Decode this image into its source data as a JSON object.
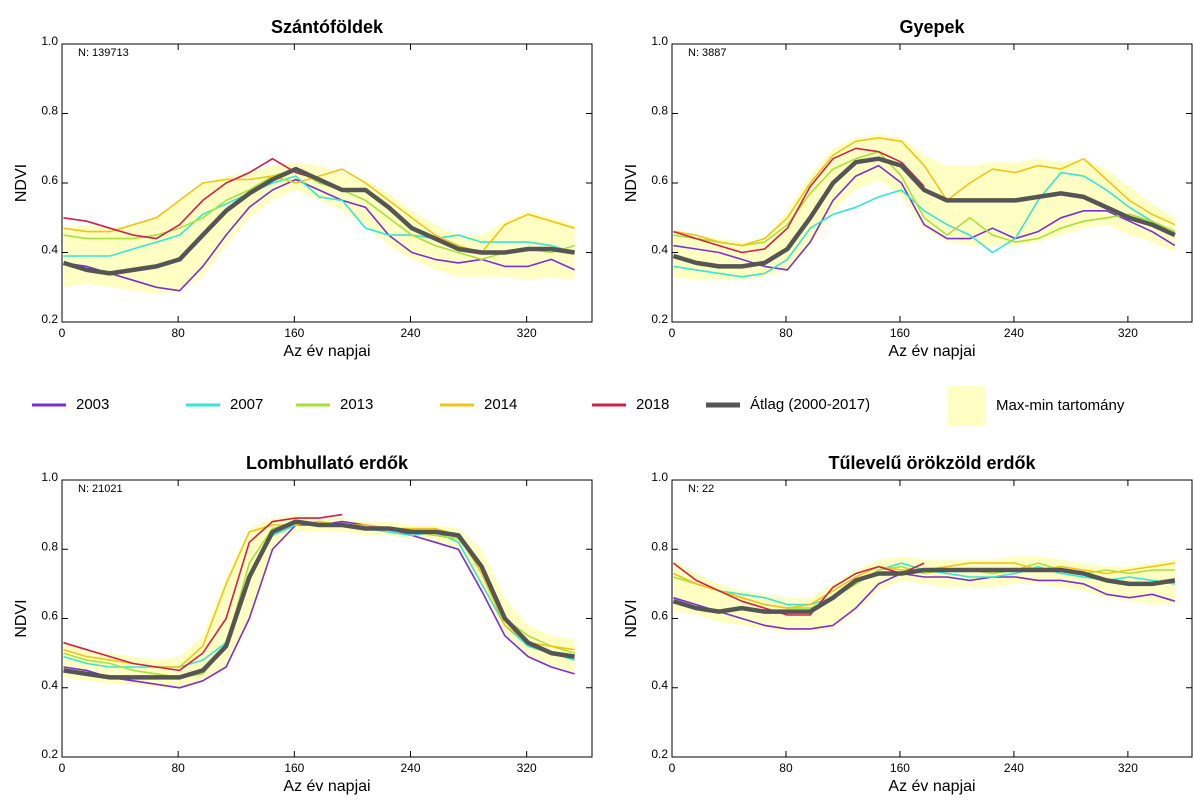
{
  "x_label_note": null,
  "legend": {
    "entries": [
      {
        "name": "2003",
        "color": "#7b2fd6"
      },
      {
        "name": "2007",
        "color": "#33e6d6"
      },
      {
        "name": "2013",
        "color": "#a6e23a"
      },
      {
        "name": "2014",
        "color": "#f0c419"
      },
      {
        "name": "2018",
        "color": "#d0204a"
      },
      {
        "name": "Átlag (2000-2017)",
        "color": "#555555"
      },
      {
        "name": "Max-min tartomány",
        "color": "#ffffc4"
      }
    ]
  },
  "chart_data": [
    {
      "type": "line",
      "title": "Szántóföldek",
      "annotation": "N: 139713",
      "x_label": "Az év napjai",
      "y_label": "NDVI",
      "x": [
        1,
        17,
        33,
        49,
        65,
        81,
        97,
        113,
        129,
        145,
        161,
        177,
        193,
        209,
        225,
        241,
        257,
        273,
        289,
        305,
        321,
        337,
        353
      ],
      "xlim": [
        0,
        365
      ],
      "xticks": [
        0,
        80,
        160,
        240,
        320
      ],
      "ylim": [
        0.2,
        1
      ],
      "yticks": [
        0.2,
        0.4,
        0.6,
        0.8,
        {
          "value": 1,
          "label": "1.0"
        }
      ],
      "band": {
        "upper": [
          0.47,
          0.48,
          0.47,
          0.48,
          0.5,
          0.55,
          0.6,
          0.62,
          0.63,
          0.65,
          0.66,
          0.65,
          0.63,
          0.61,
          0.57,
          0.52,
          0.48,
          0.45,
          0.45,
          0.49,
          0.52,
          0.5,
          0.48
        ],
        "lower": [
          0.3,
          0.31,
          0.3,
          0.29,
          0.28,
          0.29,
          0.33,
          0.42,
          0.5,
          0.55,
          0.58,
          0.55,
          0.52,
          0.48,
          0.42,
          0.38,
          0.35,
          0.33,
          0.33,
          0.33,
          0.32,
          0.33,
          0.32
        ]
      },
      "series": [
        {
          "values": [
            0.37,
            0.36,
            0.34,
            0.32,
            0.3,
            0.29,
            0.36,
            0.45,
            0.53,
            0.58,
            0.61,
            0.58,
            0.55,
            0.53,
            0.45,
            0.4,
            0.38,
            0.37,
            0.38,
            0.36,
            0.36,
            0.38,
            0.35
          ]
        },
        {
          "values": [
            0.39,
            0.39,
            0.39,
            0.41,
            0.43,
            0.45,
            0.51,
            0.54,
            0.57,
            0.6,
            0.62,
            0.56,
            0.55,
            0.47,
            0.45,
            0.45,
            0.44,
            0.45,
            0.43,
            0.43,
            0.43,
            0.42,
            0.4
          ]
        },
        {
          "values": [
            0.45,
            0.44,
            0.44,
            0.44,
            0.45,
            0.47,
            0.5,
            0.55,
            0.58,
            0.62,
            0.64,
            0.6,
            0.58,
            0.55,
            0.5,
            0.45,
            0.42,
            0.4,
            0.38,
            0.4,
            0.41,
            0.4,
            0.42
          ]
        },
        {
          "values": [
            0.47,
            0.46,
            0.46,
            0.48,
            0.5,
            0.55,
            0.6,
            0.61,
            0.61,
            0.62,
            0.6,
            0.62,
            0.64,
            0.6,
            0.55,
            0.5,
            0.45,
            0.42,
            0.4,
            0.48,
            0.51,
            0.49,
            0.47
          ]
        },
        {
          "values": [
            0.5,
            0.49,
            0.47,
            0.45,
            0.44,
            0.48,
            0.55,
            0.6,
            0.63,
            0.67,
            0.63,
            0.61,
            null,
            null,
            null,
            null,
            null,
            null,
            null,
            null,
            null,
            null,
            null
          ]
        },
        {
          "values": [
            0.37,
            0.35,
            0.34,
            0.35,
            0.36,
            0.38,
            0.45,
            0.52,
            0.57,
            0.61,
            0.64,
            0.61,
            0.58,
            0.58,
            0.53,
            0.47,
            0.44,
            0.41,
            0.4,
            0.4,
            0.41,
            0.41,
            0.4
          ]
        }
      ]
    },
    {
      "type": "line",
      "title": "Gyepek",
      "annotation": "N: 3887",
      "x_label": "Az év napjai",
      "y_label": "NDVI",
      "x": [
        1,
        17,
        33,
        49,
        65,
        81,
        97,
        113,
        129,
        145,
        161,
        177,
        193,
        209,
        225,
        241,
        257,
        273,
        289,
        305,
        321,
        337,
        353
      ],
      "xlim": [
        0,
        365
      ],
      "xticks": [
        0,
        80,
        160,
        240,
        320
      ],
      "ylim": [
        0.2,
        1
      ],
      "yticks": [
        0.2,
        0.4,
        0.6,
        0.8,
        {
          "value": 1,
          "label": "1.0"
        }
      ],
      "band": {
        "upper": [
          0.46,
          0.45,
          0.44,
          0.43,
          0.44,
          0.52,
          0.62,
          0.7,
          0.73,
          0.74,
          0.73,
          0.68,
          0.65,
          0.65,
          0.66,
          0.66,
          0.67,
          0.66,
          0.67,
          0.64,
          0.59,
          0.54,
          0.5
        ],
        "lower": [
          0.33,
          0.32,
          0.32,
          0.32,
          0.33,
          0.35,
          0.42,
          0.52,
          0.58,
          0.61,
          0.56,
          0.47,
          0.43,
          0.42,
          0.42,
          0.42,
          0.43,
          0.45,
          0.47,
          0.48,
          0.45,
          0.43,
          0.4
        ]
      },
      "series": [
        {
          "values": [
            0.42,
            0.41,
            0.4,
            0.38,
            0.36,
            0.35,
            0.43,
            0.55,
            0.62,
            0.65,
            0.6,
            0.48,
            0.44,
            0.44,
            0.47,
            0.44,
            0.46,
            0.5,
            0.52,
            0.52,
            0.49,
            0.46,
            0.42
          ]
        },
        {
          "values": [
            0.36,
            0.35,
            0.34,
            0.33,
            0.34,
            0.38,
            0.47,
            0.51,
            0.53,
            0.56,
            0.58,
            0.52,
            0.48,
            0.45,
            0.4,
            0.44,
            0.55,
            0.63,
            0.62,
            0.58,
            0.53,
            0.49,
            0.45
          ]
        },
        {
          "values": [
            0.45,
            0.44,
            0.43,
            0.42,
            0.43,
            0.48,
            0.57,
            0.64,
            0.67,
            0.69,
            0.62,
            0.5,
            0.45,
            0.5,
            0.45,
            0.43,
            0.44,
            0.47,
            0.49,
            0.5,
            0.51,
            0.49,
            0.46
          ]
        },
        {
          "values": [
            0.46,
            0.45,
            0.43,
            0.42,
            0.44,
            0.5,
            0.6,
            0.68,
            0.72,
            0.73,
            0.72,
            0.65,
            0.55,
            0.6,
            0.64,
            0.63,
            0.65,
            0.64,
            0.67,
            0.61,
            0.55,
            0.51,
            0.48
          ]
        },
        {
          "values": [
            0.46,
            0.44,
            0.42,
            0.4,
            0.41,
            0.47,
            0.59,
            0.67,
            0.7,
            0.69,
            0.66,
            0.59,
            null,
            null,
            null,
            null,
            null,
            null,
            null,
            null,
            null,
            null,
            null
          ]
        },
        {
          "values": [
            0.39,
            0.37,
            0.36,
            0.36,
            0.37,
            0.41,
            0.5,
            0.6,
            0.66,
            0.67,
            0.65,
            0.58,
            0.55,
            0.55,
            0.55,
            0.55,
            0.56,
            0.57,
            0.56,
            0.53,
            0.5,
            0.48,
            0.45
          ]
        }
      ]
    },
    {
      "type": "line",
      "title": "Lombhullató erdők",
      "annotation": "N: 21021",
      "x_label": "Az év napjai",
      "y_label": "NDVI",
      "x": [
        1,
        17,
        33,
        49,
        65,
        81,
        97,
        113,
        129,
        145,
        161,
        177,
        193,
        209,
        225,
        241,
        257,
        273,
        289,
        305,
        321,
        337,
        353
      ],
      "xlim": [
        0,
        365
      ],
      "xticks": [
        0,
        80,
        160,
        240,
        320
      ],
      "ylim": [
        0.2,
        1
      ],
      "yticks": [
        0.2,
        0.4,
        0.6,
        0.8,
        {
          "value": 1,
          "label": "1.0"
        }
      ],
      "band": {
        "upper": [
          0.53,
          0.51,
          0.5,
          0.49,
          0.48,
          0.49,
          0.55,
          0.72,
          0.86,
          0.89,
          0.9,
          0.89,
          0.89,
          0.88,
          0.88,
          0.87,
          0.87,
          0.86,
          0.8,
          0.66,
          0.58,
          0.55,
          0.54
        ],
        "lower": [
          0.43,
          0.42,
          0.41,
          0.41,
          0.4,
          0.4,
          0.42,
          0.46,
          0.6,
          0.8,
          0.85,
          0.85,
          0.85,
          0.84,
          0.84,
          0.83,
          0.82,
          0.8,
          0.68,
          0.55,
          0.49,
          0.46,
          0.44
        ]
      },
      "series": [
        {
          "values": [
            0.46,
            0.45,
            0.43,
            0.42,
            0.41,
            0.4,
            0.42,
            0.46,
            0.6,
            0.8,
            0.87,
            0.87,
            0.88,
            0.87,
            0.86,
            0.84,
            0.82,
            0.8,
            0.68,
            0.55,
            0.49,
            0.46,
            0.44
          ]
        },
        {
          "values": [
            0.49,
            0.47,
            0.46,
            0.46,
            0.46,
            0.46,
            0.48,
            0.53,
            0.72,
            0.84,
            0.87,
            0.88,
            0.87,
            0.86,
            0.85,
            0.84,
            0.85,
            0.82,
            0.7,
            0.58,
            0.52,
            0.5,
            0.48
          ]
        },
        {
          "values": [
            0.5,
            0.48,
            0.47,
            0.45,
            0.44,
            0.43,
            0.44,
            0.52,
            0.76,
            0.86,
            0.88,
            0.87,
            0.87,
            0.86,
            0.86,
            0.85,
            0.84,
            0.83,
            0.75,
            0.6,
            0.55,
            0.52,
            0.5
          ]
        },
        {
          "values": [
            0.51,
            0.49,
            0.48,
            0.47,
            0.46,
            0.46,
            0.52,
            0.7,
            0.85,
            0.87,
            0.87,
            0.88,
            0.87,
            0.87,
            0.86,
            0.86,
            0.86,
            0.84,
            0.73,
            0.58,
            0.53,
            0.52,
            0.51
          ]
        },
        {
          "values": [
            0.53,
            0.51,
            0.49,
            0.47,
            0.46,
            0.45,
            0.5,
            0.6,
            0.82,
            0.88,
            0.89,
            0.89,
            0.9,
            null,
            null,
            null,
            null,
            null,
            null,
            null,
            null,
            null,
            null
          ]
        },
        {
          "values": [
            0.45,
            0.44,
            0.43,
            0.43,
            0.43,
            0.43,
            0.45,
            0.52,
            0.72,
            0.85,
            0.88,
            0.87,
            0.87,
            0.86,
            0.86,
            0.85,
            0.85,
            0.84,
            0.75,
            0.6,
            0.53,
            0.5,
            0.49
          ]
        }
      ]
    },
    {
      "type": "line",
      "title": "Tűlevelű örökzöld erdők",
      "annotation": "N: 22",
      "x_label": "Az év napjai",
      "y_label": "NDVI",
      "x": [
        1,
        17,
        33,
        49,
        65,
        81,
        97,
        113,
        129,
        145,
        161,
        177,
        193,
        209,
        225,
        241,
        257,
        273,
        289,
        305,
        321,
        337,
        353
      ],
      "xlim": [
        0,
        365
      ],
      "xticks": [
        0,
        80,
        160,
        240,
        320
      ],
      "ylim": [
        0.2,
        1
      ],
      "yticks": [
        0.2,
        0.4,
        0.6,
        0.8,
        {
          "value": 1,
          "label": "1.0"
        }
      ],
      "band": {
        "upper": [
          0.77,
          0.73,
          0.7,
          0.68,
          0.67,
          0.66,
          0.66,
          0.7,
          0.74,
          0.77,
          0.78,
          0.77,
          0.77,
          0.77,
          0.77,
          0.78,
          0.78,
          0.77,
          0.76,
          0.75,
          0.75,
          0.76,
          0.77
        ],
        "lower": [
          0.62,
          0.61,
          0.59,
          0.58,
          0.57,
          0.56,
          0.56,
          0.57,
          0.62,
          0.68,
          0.71,
          0.7,
          0.69,
          0.69,
          0.69,
          0.7,
          0.7,
          0.69,
          0.68,
          0.66,
          0.65,
          0.64,
          0.64
        ]
      },
      "series": [
        {
          "values": [
            0.66,
            0.64,
            0.62,
            0.6,
            0.58,
            0.57,
            0.57,
            0.58,
            0.63,
            0.7,
            0.73,
            0.72,
            0.72,
            0.71,
            0.72,
            0.72,
            0.71,
            0.71,
            0.7,
            0.67,
            0.66,
            0.67,
            0.65
          ]
        },
        {
          "values": [
            0.73,
            0.7,
            0.68,
            0.67,
            0.66,
            0.64,
            0.64,
            0.66,
            0.7,
            0.74,
            0.76,
            0.74,
            0.73,
            0.72,
            0.72,
            0.73,
            0.75,
            0.73,
            0.72,
            0.71,
            0.72,
            0.71,
            0.7
          ]
        },
        {
          "values": [
            0.72,
            0.7,
            0.68,
            0.66,
            0.64,
            0.63,
            0.63,
            0.66,
            0.7,
            0.74,
            0.75,
            0.73,
            0.74,
            0.74,
            0.73,
            0.74,
            0.76,
            0.74,
            0.73,
            0.74,
            0.73,
            0.74,
            0.74
          ]
        },
        {
          "values": [
            0.73,
            0.7,
            0.68,
            0.66,
            0.64,
            0.63,
            0.64,
            0.68,
            0.72,
            0.75,
            0.74,
            0.74,
            0.75,
            0.76,
            0.76,
            0.76,
            0.74,
            0.75,
            0.74,
            0.73,
            0.74,
            0.75,
            0.76
          ]
        },
        {
          "values": [
            0.76,
            0.71,
            0.68,
            0.65,
            0.63,
            0.61,
            0.61,
            0.69,
            0.73,
            0.75,
            0.73,
            0.76,
            null,
            null,
            null,
            null,
            null,
            null,
            null,
            null,
            null,
            null,
            null
          ]
        },
        {
          "values": [
            0.65,
            0.63,
            0.62,
            0.63,
            0.62,
            0.62,
            0.62,
            0.66,
            0.71,
            0.73,
            0.73,
            0.74,
            0.74,
            0.74,
            0.74,
            0.74,
            0.74,
            0.74,
            0.73,
            0.71,
            0.7,
            0.7,
            0.71
          ]
        }
      ]
    }
  ]
}
